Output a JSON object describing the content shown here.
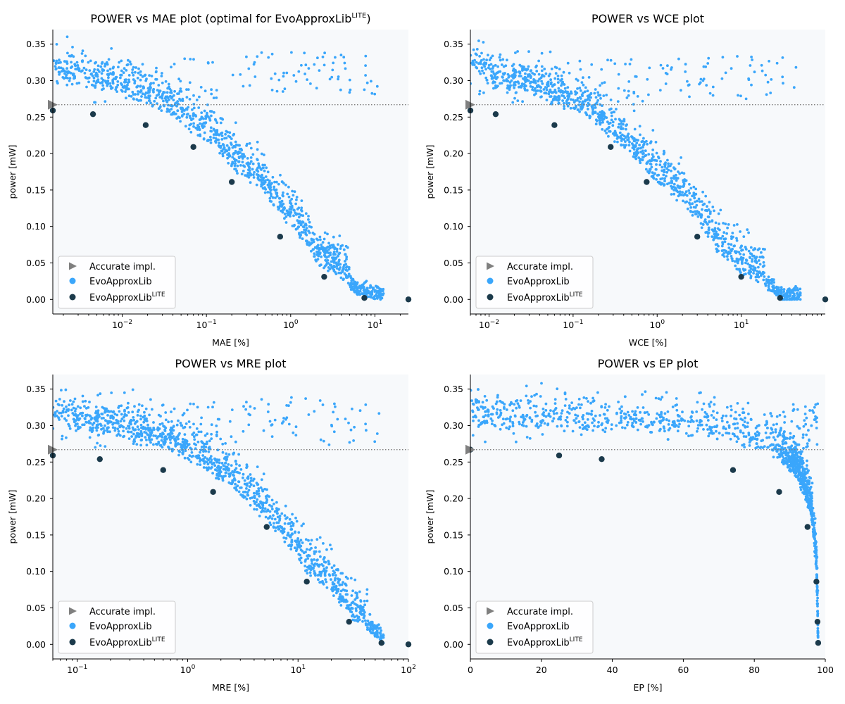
{
  "colors": {
    "plot_bg": "#f7f9fb",
    "evo": "#3aa6fb",
    "lite": "#1b3a4b",
    "accurate": "#7f7f7f",
    "ref_line": "#7f7f7f"
  },
  "legend_labels": {
    "accurate": "Accurate impl.",
    "evo": "EvoApproxLib",
    "lite_base": "EvoApproxLib",
    "lite_sup": "LITE"
  },
  "chart_data": [
    {
      "type": "scatter",
      "scale": "log",
      "title": "POWER vs MAE plot (optimal for EvoApproxLib",
      "title_sup": "LITE",
      "title_tail": ")",
      "xlabel": "MAE [%]",
      "ylabel": "power [mW]",
      "xlim": [
        0.0015,
        25
      ],
      "ylim": [
        -0.02,
        0.37
      ],
      "yticks": [
        0.0,
        0.05,
        0.1,
        0.15,
        0.2,
        0.25,
        0.3,
        0.35
      ],
      "ytick_labels": [
        "0.00",
        "0.05",
        "0.10",
        "0.15",
        "0.20",
        "0.25",
        "0.30",
        "0.35"
      ],
      "xticks": [
        {
          "value": 0.01,
          "base": "10",
          "exp": "−2"
        },
        {
          "value": 0.1,
          "base": "10",
          "exp": "−1"
        },
        {
          "value": 1,
          "base": "10",
          "exp": "0"
        },
        {
          "value": 10,
          "base": "10",
          "exp": "1"
        }
      ],
      "accurate": {
        "x": 0.0015,
        "y": 0.267
      },
      "reference_line_y": 0.267,
      "evo_curve": [
        [
          0.0015,
          0.3
        ],
        [
          0.005,
          0.29
        ],
        [
          0.02,
          0.27
        ],
        [
          0.07,
          0.23
        ],
        [
          0.2,
          0.18
        ],
        [
          0.7,
          0.12
        ],
        [
          2,
          0.05
        ],
        [
          6,
          0.01
        ],
        [
          13,
          0.001
        ]
      ],
      "evo_upper": [
        [
          0.003,
          0.33
        ],
        [
          0.5,
          0.34
        ],
        [
          8,
          0.335
        ],
        [
          15,
          0.33
        ]
      ],
      "lite_points": [
        [
          0.0015,
          0.259
        ],
        [
          0.0045,
          0.254
        ],
        [
          0.019,
          0.239
        ],
        [
          0.07,
          0.209
        ],
        [
          0.2,
          0.161
        ],
        [
          0.75,
          0.086
        ],
        [
          2.5,
          0.031
        ],
        [
          7.5,
          0.002
        ],
        [
          25,
          0.0
        ]
      ]
    },
    {
      "type": "scatter",
      "scale": "log",
      "title": "POWER vs WCE plot",
      "title_sup": "",
      "title_tail": "",
      "xlabel": "WCE [%]",
      "ylabel": "power [mW]",
      "xlim": [
        0.006,
        100
      ],
      "ylim": [
        -0.02,
        0.37
      ],
      "yticks": [
        0.0,
        0.05,
        0.1,
        0.15,
        0.2,
        0.25,
        0.3,
        0.35
      ],
      "ytick_labels": [
        "0.00",
        "0.05",
        "0.10",
        "0.15",
        "0.20",
        "0.25",
        "0.30",
        "0.35"
      ],
      "xticks": [
        {
          "value": 0.01,
          "base": "10",
          "exp": "−2"
        },
        {
          "value": 0.1,
          "base": "10",
          "exp": "−1"
        },
        {
          "value": 1,
          "base": "10",
          "exp": "0"
        },
        {
          "value": 10,
          "base": "10",
          "exp": "1"
        }
      ],
      "accurate": {
        "x": 0.006,
        "y": 0.267
      },
      "reference_line_y": 0.267,
      "evo_curve": [
        [
          0.006,
          0.31
        ],
        [
          0.012,
          0.29
        ],
        [
          0.06,
          0.27
        ],
        [
          0.3,
          0.22
        ],
        [
          0.8,
          0.17
        ],
        [
          2,
          0.13
        ],
        [
          5,
          0.07
        ],
        [
          10,
          0.035
        ],
        [
          30,
          0.002
        ]
      ],
      "evo_upper": [
        [
          0.01,
          0.33
        ],
        [
          1,
          0.33
        ],
        [
          10,
          0.335
        ],
        [
          60,
          0.33
        ]
      ],
      "lite_points": [
        [
          0.006,
          0.259
        ],
        [
          0.012,
          0.254
        ],
        [
          0.06,
          0.239
        ],
        [
          0.28,
          0.209
        ],
        [
          0.75,
          0.161
        ],
        [
          3.0,
          0.086
        ],
        [
          10,
          0.031
        ],
        [
          29,
          0.002
        ],
        [
          100,
          0.0
        ]
      ]
    },
    {
      "type": "scatter",
      "scale": "log",
      "title": "POWER vs MRE plot",
      "title_sup": "",
      "title_tail": "",
      "xlabel": "MRE [%]",
      "ylabel": "power [mW]",
      "xlim": [
        0.06,
        100
      ],
      "ylim": [
        -0.02,
        0.37
      ],
      "yticks": [
        0.0,
        0.05,
        0.1,
        0.15,
        0.2,
        0.25,
        0.3,
        0.35
      ],
      "ytick_labels": [
        "0.00",
        "0.05",
        "0.10",
        "0.15",
        "0.20",
        "0.25",
        "0.30",
        "0.35"
      ],
      "xticks": [
        {
          "value": 0.1,
          "base": "10",
          "exp": "−1"
        },
        {
          "value": 1,
          "base": "10",
          "exp": "0"
        },
        {
          "value": 10,
          "base": "10",
          "exp": "1"
        },
        {
          "value": 100,
          "base": "10",
          "exp": "2"
        }
      ],
      "accurate": {
        "x": 0.06,
        "y": 0.267
      },
      "reference_line_y": 0.267,
      "evo_curve": [
        [
          0.06,
          0.3
        ],
        [
          0.15,
          0.29
        ],
        [
          0.6,
          0.27
        ],
        [
          1.8,
          0.23
        ],
        [
          5,
          0.17
        ],
        [
          12,
          0.1
        ],
        [
          30,
          0.035
        ],
        [
          60,
          0.005
        ],
        [
          80,
          0.001
        ]
      ],
      "evo_upper": [
        [
          0.1,
          0.33
        ],
        [
          3,
          0.335
        ],
        [
          8,
          0.34
        ],
        [
          25,
          0.33
        ]
      ],
      "lite_points": [
        [
          0.06,
          0.259
        ],
        [
          0.16,
          0.254
        ],
        [
          0.6,
          0.239
        ],
        [
          1.7,
          0.209
        ],
        [
          5.2,
          0.161
        ],
        [
          12,
          0.086
        ],
        [
          29,
          0.031
        ],
        [
          57,
          0.002
        ],
        [
          100,
          0.0
        ]
      ]
    },
    {
      "type": "scatter",
      "scale": "linear",
      "title": "POWER vs EP plot",
      "title_sup": "",
      "title_tail": "",
      "xlabel": "EP [%]",
      "ylabel": "power [mW]",
      "xlim": [
        0,
        100
      ],
      "ylim": [
        -0.02,
        0.37
      ],
      "yticks": [
        0.0,
        0.05,
        0.1,
        0.15,
        0.2,
        0.25,
        0.3,
        0.35
      ],
      "ytick_labels": [
        "0.00",
        "0.05",
        "0.10",
        "0.15",
        "0.20",
        "0.25",
        "0.30",
        "0.35"
      ],
      "xticks": [
        {
          "value": 0,
          "label": "0"
        },
        {
          "value": 20,
          "label": "20"
        },
        {
          "value": 40,
          "label": "40"
        },
        {
          "value": 60,
          "label": "60"
        },
        {
          "value": 80,
          "label": "80"
        },
        {
          "value": 100,
          "label": "100"
        }
      ],
      "accurate": {
        "x": 0,
        "y": 0.267
      },
      "reference_line_y": 0.267,
      "evo_curve": [
        [
          0,
          0.3
        ],
        [
          40,
          0.295
        ],
        [
          70,
          0.285
        ],
        [
          85,
          0.26
        ],
        [
          92,
          0.23
        ],
        [
          96,
          0.18
        ],
        [
          97.5,
          0.1
        ],
        [
          98,
          0.0
        ]
      ],
      "evo_upper": [
        [
          5,
          0.33
        ],
        [
          25,
          0.345
        ],
        [
          50,
          0.33
        ],
        [
          90,
          0.33
        ]
      ],
      "lite_points": [
        [
          0,
          0.267
        ],
        [
          25,
          0.259
        ],
        [
          37,
          0.254
        ],
        [
          74,
          0.239
        ],
        [
          87,
          0.209
        ],
        [
          95,
          0.161
        ],
        [
          97.5,
          0.086
        ],
        [
          97.8,
          0.031
        ],
        [
          98,
          0.002
        ]
      ]
    }
  ]
}
